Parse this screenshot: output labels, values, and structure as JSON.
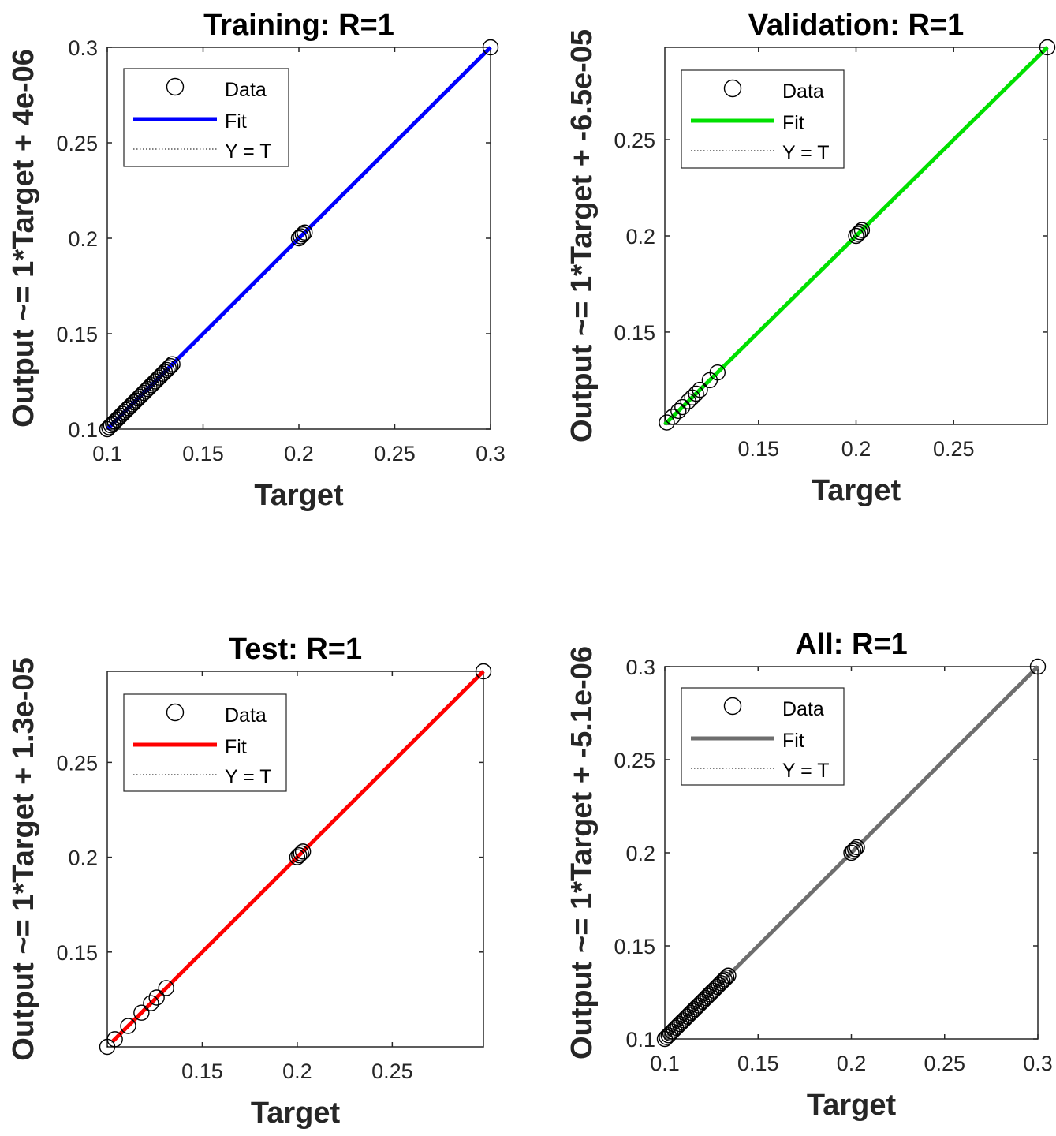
{
  "chart_data": [
    {
      "type": "scatter",
      "title": "Training: R=1",
      "xlabel": "Target",
      "ylabel": "Output ~= 1*Target + 4e-06",
      "xlim": [
        0.1,
        0.3
      ],
      "ylim": [
        0.1,
        0.3
      ],
      "xticks": [
        0.1,
        0.15,
        0.2,
        0.25,
        0.3
      ],
      "xtick_labels": [
        "0.1",
        "0.15",
        "0.2",
        "0.25",
        "0.3"
      ],
      "yticks": [
        0.1,
        0.15,
        0.2,
        0.25,
        0.3
      ],
      "ytick_labels": [
        "0.1",
        "0.15",
        "0.2",
        "0.25",
        "0.3"
      ],
      "fit_color": "#0000ff",
      "fit_line": [
        [
          0.1,
          0.1
        ],
        [
          0.3,
          0.3
        ]
      ],
      "points": [
        [
          0.1,
          0.1
        ],
        [
          0.101,
          0.101
        ],
        [
          0.102,
          0.102
        ],
        [
          0.103,
          0.103
        ],
        [
          0.104,
          0.104
        ],
        [
          0.105,
          0.105
        ],
        [
          0.106,
          0.106
        ],
        [
          0.107,
          0.107
        ],
        [
          0.108,
          0.108
        ],
        [
          0.109,
          0.109
        ],
        [
          0.11,
          0.11
        ],
        [
          0.111,
          0.111
        ],
        [
          0.112,
          0.112
        ],
        [
          0.113,
          0.113
        ],
        [
          0.114,
          0.114
        ],
        [
          0.115,
          0.115
        ],
        [
          0.116,
          0.116
        ],
        [
          0.117,
          0.117
        ],
        [
          0.118,
          0.118
        ],
        [
          0.119,
          0.119
        ],
        [
          0.12,
          0.12
        ],
        [
          0.121,
          0.121
        ],
        [
          0.122,
          0.122
        ],
        [
          0.123,
          0.123
        ],
        [
          0.124,
          0.124
        ],
        [
          0.125,
          0.125
        ],
        [
          0.126,
          0.126
        ],
        [
          0.127,
          0.127
        ],
        [
          0.128,
          0.128
        ],
        [
          0.129,
          0.129
        ],
        [
          0.13,
          0.13
        ],
        [
          0.131,
          0.131
        ],
        [
          0.132,
          0.132
        ],
        [
          0.133,
          0.133
        ],
        [
          0.134,
          0.134
        ],
        [
          0.2,
          0.2
        ],
        [
          0.201,
          0.201
        ],
        [
          0.202,
          0.202
        ],
        [
          0.203,
          0.203
        ],
        [
          0.3,
          0.3
        ]
      ],
      "legend": {
        "position": "top-left",
        "entries": [
          "Data",
          "Fit",
          "Y = T"
        ]
      }
    },
    {
      "type": "scatter",
      "title": "Validation: R=1",
      "xlabel": "Target",
      "ylabel": "Output ~= 1*Target + -6.5e-05",
      "xlim": [
        0.102,
        0.298
      ],
      "ylim": [
        0.102,
        0.298
      ],
      "xticks": [
        0.15,
        0.2,
        0.25
      ],
      "xtick_labels": [
        "0.15",
        "0.2",
        "0.25"
      ],
      "yticks": [
        0.15,
        0.2,
        0.25
      ],
      "ytick_labels": [
        "0.15",
        "0.2",
        "0.25"
      ],
      "fit_color": "#00e000",
      "fit_line": [
        [
          0.102,
          0.102
        ],
        [
          0.298,
          0.298
        ]
      ],
      "points": [
        [
          0.103,
          0.103
        ],
        [
          0.106,
          0.106
        ],
        [
          0.109,
          0.109
        ],
        [
          0.111,
          0.111
        ],
        [
          0.114,
          0.114
        ],
        [
          0.116,
          0.116
        ],
        [
          0.118,
          0.118
        ],
        [
          0.12,
          0.12
        ],
        [
          0.125,
          0.125
        ],
        [
          0.129,
          0.129
        ],
        [
          0.2,
          0.2
        ],
        [
          0.201,
          0.201
        ],
        [
          0.202,
          0.202
        ],
        [
          0.203,
          0.203
        ],
        [
          0.298,
          0.298
        ]
      ],
      "legend": {
        "position": "top-left",
        "entries": [
          "Data",
          "Fit",
          "Y = T"
        ]
      }
    },
    {
      "type": "scatter",
      "title": "Test: R=1",
      "xlabel": "Target",
      "ylabel": "Output ~= 1*Target + 1.3e-05",
      "xlim": [
        0.1,
        0.298
      ],
      "ylim": [
        0.1,
        0.298
      ],
      "xticks": [
        0.15,
        0.2,
        0.25
      ],
      "xtick_labels": [
        "0.15",
        "0.2",
        "0.25"
      ],
      "yticks": [
        0.15,
        0.2,
        0.25
      ],
      "ytick_labels": [
        "0.15",
        "0.2",
        "0.25"
      ],
      "fit_color": "#ff0000",
      "fit_line": [
        [
          0.103,
          0.103
        ],
        [
          0.298,
          0.298
        ]
      ],
      "points": [
        [
          0.1,
          0.1
        ],
        [
          0.104,
          0.104
        ],
        [
          0.111,
          0.111
        ],
        [
          0.118,
          0.118
        ],
        [
          0.123,
          0.123
        ],
        [
          0.126,
          0.126
        ],
        [
          0.131,
          0.131
        ],
        [
          0.2,
          0.2
        ],
        [
          0.201,
          0.201
        ],
        [
          0.202,
          0.202
        ],
        [
          0.203,
          0.203
        ],
        [
          0.298,
          0.298
        ]
      ],
      "legend": {
        "position": "top-left",
        "entries": [
          "Data",
          "Fit",
          "Y = T"
        ]
      }
    },
    {
      "type": "scatter",
      "title": "All: R=1",
      "xlabel": "Target",
      "ylabel": "Output ~= 1*Target + -5.1e-06",
      "xlim": [
        0.1,
        0.3
      ],
      "ylim": [
        0.1,
        0.3
      ],
      "xticks": [
        0.1,
        0.15,
        0.2,
        0.25,
        0.3
      ],
      "xtick_labels": [
        "0.1",
        "0.15",
        "0.2",
        "0.25",
        "0.3"
      ],
      "yticks": [
        0.1,
        0.15,
        0.2,
        0.25,
        0.3
      ],
      "ytick_labels": [
        "0.1",
        "0.15",
        "0.2",
        "0.25",
        "0.3"
      ],
      "fit_color": "#6e6e6e",
      "fit_line": [
        [
          0.1,
          0.1
        ],
        [
          0.3,
          0.3
        ]
      ],
      "points": [
        [
          0.1,
          0.1
        ],
        [
          0.101,
          0.101
        ],
        [
          0.102,
          0.102
        ],
        [
          0.103,
          0.103
        ],
        [
          0.104,
          0.104
        ],
        [
          0.105,
          0.105
        ],
        [
          0.106,
          0.106
        ],
        [
          0.107,
          0.107
        ],
        [
          0.108,
          0.108
        ],
        [
          0.109,
          0.109
        ],
        [
          0.11,
          0.11
        ],
        [
          0.111,
          0.111
        ],
        [
          0.112,
          0.112
        ],
        [
          0.113,
          0.113
        ],
        [
          0.114,
          0.114
        ],
        [
          0.115,
          0.115
        ],
        [
          0.116,
          0.116
        ],
        [
          0.117,
          0.117
        ],
        [
          0.118,
          0.118
        ],
        [
          0.119,
          0.119
        ],
        [
          0.12,
          0.12
        ],
        [
          0.121,
          0.121
        ],
        [
          0.122,
          0.122
        ],
        [
          0.123,
          0.123
        ],
        [
          0.124,
          0.124
        ],
        [
          0.125,
          0.125
        ],
        [
          0.126,
          0.126
        ],
        [
          0.127,
          0.127
        ],
        [
          0.128,
          0.128
        ],
        [
          0.129,
          0.129
        ],
        [
          0.13,
          0.13
        ],
        [
          0.131,
          0.131
        ],
        [
          0.132,
          0.132
        ],
        [
          0.133,
          0.133
        ],
        [
          0.134,
          0.134
        ],
        [
          0.2,
          0.2
        ],
        [
          0.201,
          0.201
        ],
        [
          0.202,
          0.202
        ],
        [
          0.203,
          0.203
        ],
        [
          0.3,
          0.3
        ]
      ],
      "legend": {
        "position": "top-left",
        "entries": [
          "Data",
          "Fit",
          "Y = T"
        ]
      }
    }
  ]
}
